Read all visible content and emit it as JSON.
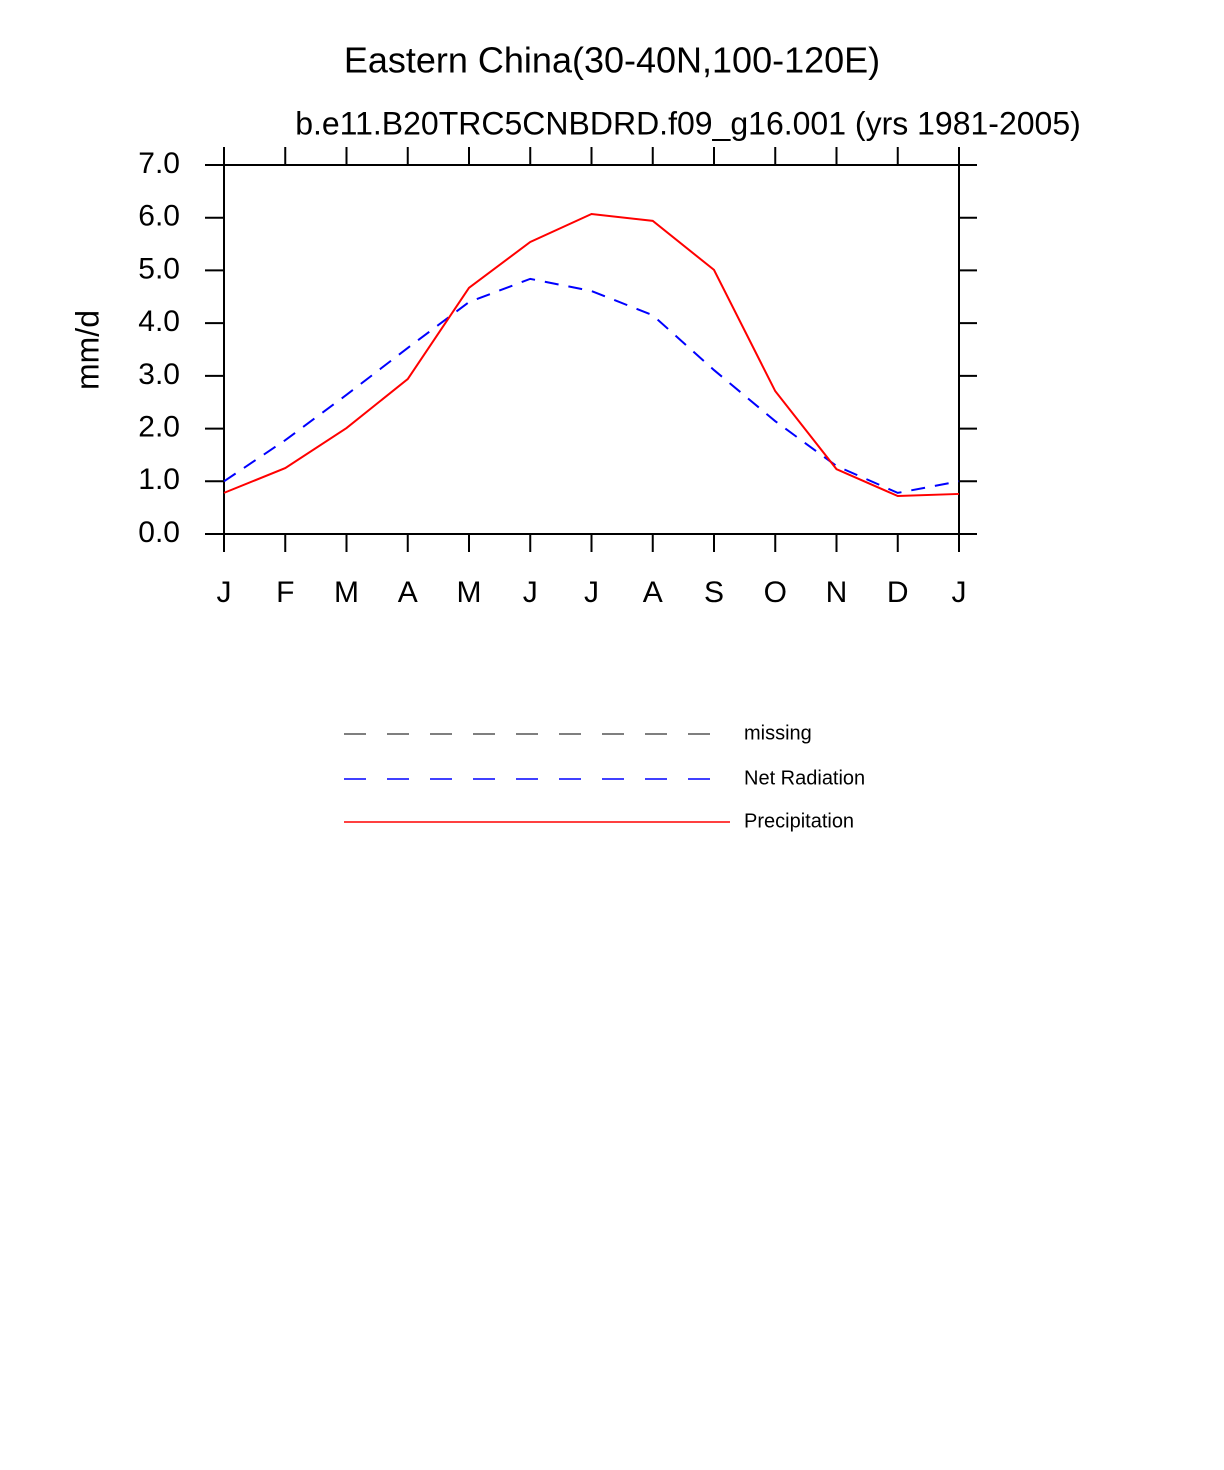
{
  "chart_data": {
    "type": "line",
    "title": "Eastern China(30-40N,100-120E)",
    "subtitle": "b.e11.B20TRC5CNBDRD.f09_g16.001 (yrs 1981-2005)",
    "y_label": "mm/d",
    "categories": [
      "J",
      "F",
      "M",
      "A",
      "M",
      "J",
      "J",
      "A",
      "S",
      "O",
      "N",
      "D",
      "J"
    ],
    "ylim": [
      0,
      7
    ],
    "yticks": [
      {
        "value": 0,
        "label": "0.0"
      },
      {
        "value": 1,
        "label": "1.0"
      },
      {
        "value": 2,
        "label": "2.0"
      },
      {
        "value": 3,
        "label": "3.0"
      },
      {
        "value": 4,
        "label": "4.0"
      },
      {
        "value": 5,
        "label": "5.0"
      },
      {
        "value": 6,
        "label": "6.0"
      },
      {
        "value": 7,
        "label": "7.0"
      }
    ],
    "series": [
      {
        "name": "missing",
        "color": "#555555",
        "dashed": true,
        "values": [
          null,
          null,
          null,
          null,
          null,
          null,
          null,
          null,
          null,
          null,
          null,
          null,
          null
        ]
      },
      {
        "name": "Net Radiation",
        "color": "#0000ff",
        "dashed": true,
        "values": [
          1.0,
          1.78,
          2.64,
          3.53,
          4.4,
          4.84,
          4.61,
          4.15,
          3.11,
          2.14,
          1.29,
          0.78,
          1.0
        ]
      },
      {
        "name": "Precipitation",
        "color": "#ff0000",
        "dashed": false,
        "values": [
          0.78,
          1.25,
          2.01,
          2.94,
          4.67,
          5.54,
          6.07,
          5.94,
          5.01,
          2.71,
          1.23,
          0.72,
          0.76
        ]
      }
    ]
  }
}
